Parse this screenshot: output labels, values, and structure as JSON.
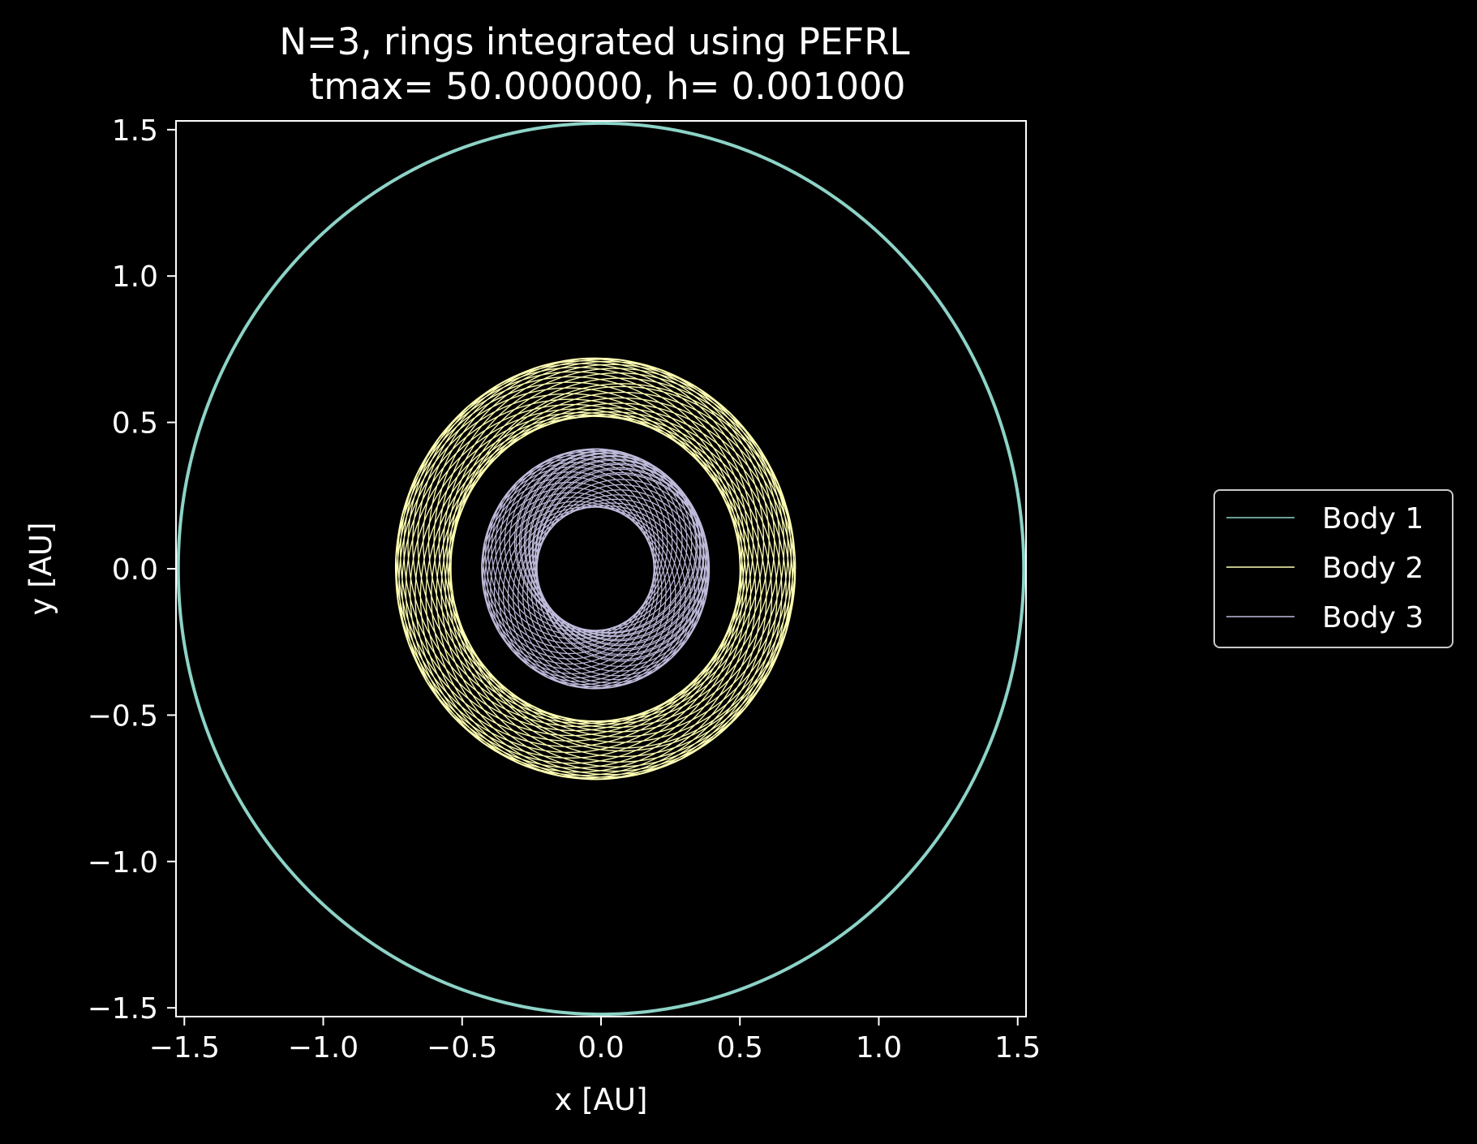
{
  "colors": {
    "background": "#000000",
    "foreground": "#ffffff",
    "legend_frame": "#c9c9c9"
  },
  "chart_data": {
    "type": "line",
    "title": "N=3, rings integrated using PEFRL",
    "subtitle": "tmax= 50.000000, h= 0.001000",
    "xlabel": "x [AU]",
    "ylabel": "y [AU]",
    "xlim": [
      -1.53,
      1.53
    ],
    "ylim": [
      -1.53,
      1.53
    ],
    "xticks": [
      -1.5,
      -1.0,
      -0.5,
      0.0,
      0.5,
      1.0,
      1.5
    ],
    "xtick_labels": [
      "−1.5",
      "−1.0",
      "−0.5",
      "0.0",
      "0.5",
      "1.0",
      "1.5"
    ],
    "yticks": [
      1.5,
      1.0,
      0.5,
      0.0,
      -0.5,
      -1.0,
      -1.5
    ],
    "ytick_labels": [
      "1.5",
      "1.0",
      "0.5",
      "0.0",
      "−0.5",
      "−1.0",
      "−1.5"
    ],
    "grid": false,
    "legend_position": "outside right",
    "series": [
      {
        "name": "Body 1",
        "color": "#8dd3c7",
        "orbit": "near-circular, radius about 1.52 AU"
      },
      {
        "name": "Body 2",
        "color": "#ffffb3",
        "orbit": "precessing rosette ring, radius from 0.52 to 0.72 AU, center near (-0.02, 0.0)"
      },
      {
        "name": "Body 3",
        "color": "#bebada",
        "orbit": "precessing rosette ring, radius from 0.21 to 0.41 AU, center near (-0.02, 0.0)"
      }
    ]
  }
}
